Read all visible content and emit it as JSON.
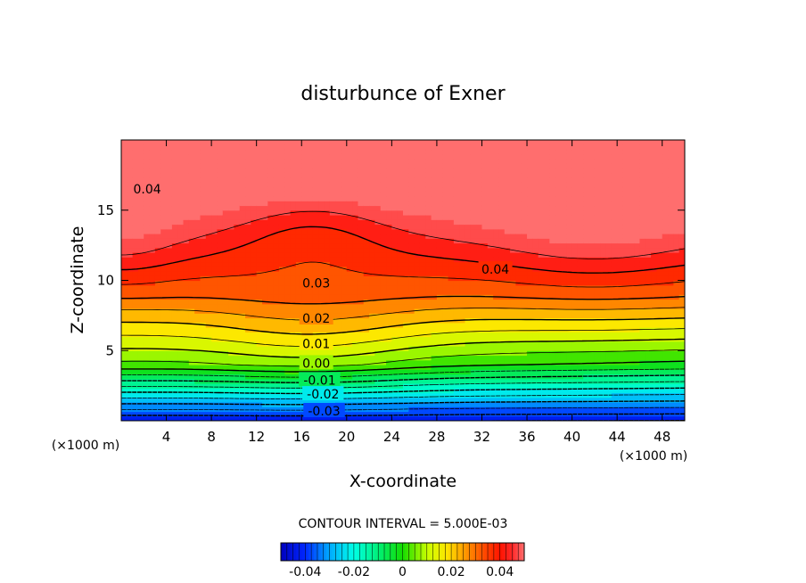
{
  "chart_data": {
    "type": "heatmap",
    "title": "disturbunce of Exner",
    "xlabel": "X-coordinate",
    "ylabel": "Z-coordinate",
    "x_unit_left": "(×1000 m)",
    "x_unit_right": "(×1000 m)",
    "xlim": [
      0,
      50
    ],
    "ylim": [
      0,
      20
    ],
    "xticks": [
      4,
      8,
      12,
      16,
      20,
      24,
      28,
      32,
      36,
      40,
      44,
      48
    ],
    "yticks": [
      5,
      10,
      15
    ],
    "contour_labels": [
      {
        "text": "0.04",
        "x": 2.3,
        "z": 16.5
      },
      {
        "text": "0.04",
        "x": 33.2,
        "z": 10.8
      },
      {
        "text": "0.03",
        "x": 17.3,
        "z": 9.8
      },
      {
        "text": "0.02",
        "x": 17.3,
        "z": 7.3
      },
      {
        "text": "0.01",
        "x": 17.3,
        "z": 5.5
      },
      {
        "text": "0.00",
        "x": 17.3,
        "z": 4.1
      },
      {
        "text": "-0.01",
        "x": 17.6,
        "z": 2.9
      },
      {
        "text": "-0.02",
        "x": 17.9,
        "z": 1.9
      },
      {
        "text": "-0.03",
        "x": 18.0,
        "z": 0.7
      }
    ],
    "contour_interval_text": "CONTOUR INTERVAL = 5.000E-03",
    "colorbar": {
      "min": -0.05,
      "max": 0.05,
      "tick_values": [
        -0.04,
        -0.02,
        0,
        0.02,
        0.04
      ],
      "tick_labels": [
        "-0.04",
        "-0.02",
        "0",
        "0.02",
        "0.04"
      ]
    },
    "colors": {
      "low": "#0000e0",
      "mid": "#00ff00",
      "high": "#ff0000",
      "top": "#ff5030"
    }
  }
}
